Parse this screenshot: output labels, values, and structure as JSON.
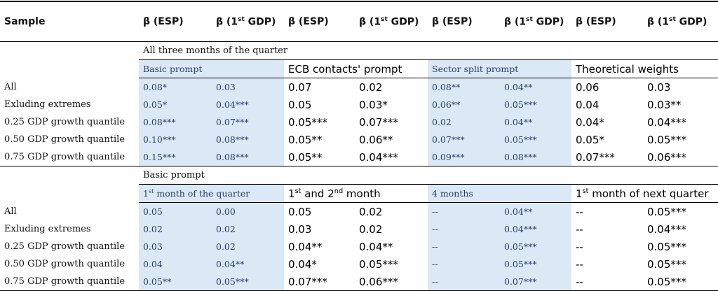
{
  "header": [
    [
      "Sample"
    ],
    [
      "β (ESP)"
    ],
    [
      "β (1",
      "st",
      " GDP)"
    ],
    [
      "β (ESP)"
    ],
    [
      "β (1",
      "st",
      " GDP)"
    ],
    [
      "β (ESP)"
    ],
    [
      "β (1",
      "st",
      " GDP)"
    ],
    [
      "β (ESP)"
    ],
    [
      "β (1",
      "st",
      " GDP)"
    ]
  ],
  "sections": [
    {
      "title": "All three months of the quarter",
      "groups": [
        [
          "Basic prompt"
        ],
        [
          "ECB contacts' prompt"
        ],
        [
          "Sector split prompt"
        ],
        [
          "Theoretical weights"
        ]
      ],
      "rows": [
        [
          "All",
          "0.08*",
          "0.03",
          "0.07",
          "0.02",
          "0.08**",
          "0.04**",
          "0.06",
          "0.03"
        ],
        [
          "Exluding extremes",
          "0.05*",
          "0.04***",
          "0.05",
          "0.03*",
          "0.06**",
          "0.05***",
          "0.04",
          "0.03**"
        ],
        [
          "0.25 GDP growth quantile",
          "0.08***",
          "0.07***",
          "0.05***",
          "0.07***",
          "0.02",
          "0.04**",
          "0.04*",
          "0.04***"
        ],
        [
          "0.50 GDP growth quantile",
          "0.10***",
          "0.08***",
          "0.05**",
          "0.06**",
          "0.07***",
          "0.05***",
          "0.05*",
          "0.05***"
        ],
        [
          "0.75 GDP growth quantile",
          "0.15***",
          "0.08***",
          "0.05**",
          "0.04***",
          "0.09***",
          "0.08***",
          "0.07***",
          "0.06***"
        ]
      ]
    },
    {
      "title": "Basic prompt",
      "groups": [
        [
          "1",
          "st",
          " month of the quarter"
        ],
        [
          "1",
          "st",
          " and 2",
          "nd",
          " month"
        ],
        [
          "4 months"
        ],
        [
          "1",
          "st",
          " month of next quarter"
        ]
      ],
      "rows": [
        [
          "All",
          "0.05",
          "0.00",
          "0.05",
          "0.02",
          "--",
          "0.04**",
          "--",
          "0.05***"
        ],
        [
          "Exluding extremes",
          "0.02",
          "0.02",
          "0.03",
          "0.02",
          "--",
          "0.04***",
          "--",
          "0.04***"
        ],
        [
          "0.25 GDP growth quantile",
          "0.03",
          "0.02",
          "0.04**",
          "0.04**",
          "--",
          "0.05***",
          "--",
          "0.05***"
        ],
        [
          "0.50 GDP growth quantile",
          "0.04",
          "0.04**",
          "0.04*",
          "0.05***",
          "--",
          "0.05***",
          "--",
          "0.05***"
        ],
        [
          "0.75 GDP growth quantile",
          "0.05**",
          "0.05***",
          "0.07***",
          "0.06***",
          "--",
          "0.07***",
          "--",
          "0.05***"
        ]
      ]
    }
  ]
}
